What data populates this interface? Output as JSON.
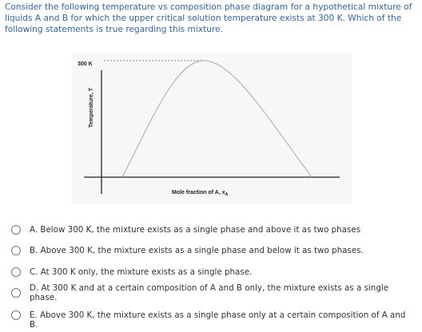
{
  "question": "Consider the following temperature vs composition phase diagram for a hypothetical mixture of liquids A and B for which the upper critical solution temperature exists at 300 K. Which of the following statements is true regarding this mixture.",
  "figure": {
    "y_tick": "300 K",
    "y_label": "Temperature, T",
    "x_label": "Mole fraction of A, x",
    "x_label_subscript": "A"
  },
  "options": [
    "A. Below 300 K, the mixture exists as a single phase and above it as two phases",
    "B. Above 300 K, the mixture exists as a single phase and below it as two phases.",
    "C. At 300 K only, the mixture exists as a single phase.",
    "D. At 300 K and at a certain composition of A and B only, the mixture exists as a single phase.",
    "E. Above 300 K, the mixture exists as a single phase only at a certain composition of A and B."
  ]
}
